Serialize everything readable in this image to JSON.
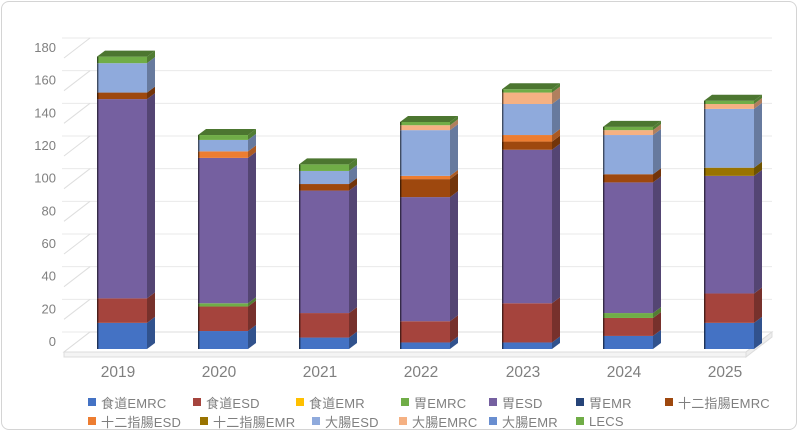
{
  "chart_data": {
    "type": "bar",
    "stacked": true,
    "effect_3d": true,
    "title": "",
    "xlabel": "",
    "ylabel": "",
    "categories": [
      "2019",
      "2020",
      "2021",
      "2022",
      "2023",
      "2024",
      "2025"
    ],
    "series": [
      {
        "name": "食道EMRC",
        "color": "#4472C4",
        "values": [
          16,
          11,
          7,
          4,
          4,
          8,
          16
        ]
      },
      {
        "name": "食道ESD",
        "color": "#A5443D",
        "values": [
          15,
          15,
          15,
          13,
          24,
          11,
          18
        ]
      },
      {
        "name": "食道EMR",
        "color": "#FFC000",
        "values": [
          0,
          0,
          0,
          0,
          0,
          0,
          0
        ]
      },
      {
        "name": "胃EMRC",
        "color": "#70AD47",
        "values": [
          0,
          2,
          0,
          0,
          0,
          3,
          0
        ]
      },
      {
        "name": "胃ESD",
        "color": "#7560A0",
        "values": [
          122,
          89,
          75,
          76,
          94,
          80,
          72
        ]
      },
      {
        "name": "胃EMR",
        "color": "#264478",
        "values": [
          0,
          0,
          0,
          0,
          0,
          0,
          0
        ]
      },
      {
        "name": "十二指腸EMRC",
        "color": "#9E480E",
        "values": [
          4,
          0,
          4,
          11,
          5,
          5,
          0
        ]
      },
      {
        "name": "十二指腸ESD",
        "color": "#ED7D31",
        "values": [
          0,
          4,
          0,
          2,
          4,
          0,
          0
        ]
      },
      {
        "name": "十二指腸EMR",
        "color": "#997300",
        "values": [
          0,
          0,
          0,
          0,
          0,
          0,
          5
        ]
      },
      {
        "name": "大腸ESD",
        "color": "#8FAADC",
        "values": [
          18,
          7,
          8,
          28,
          19,
          24,
          36
        ]
      },
      {
        "name": "大腸EMRC",
        "color": "#F5B183",
        "values": [
          0,
          0,
          0,
          3,
          7,
          3,
          3
        ]
      },
      {
        "name": "大腸EMR",
        "color": "#698ED0",
        "values": [
          0,
          0,
          0,
          0,
          0,
          0,
          0
        ]
      },
      {
        "name": "LECS",
        "color": "#70AD47",
        "values": [
          4,
          3,
          4,
          2,
          2,
          2,
          2
        ]
      }
    ],
    "ylim": [
      0,
      180
    ],
    "yticks": [
      0,
      20,
      40,
      60,
      80,
      100,
      120,
      140,
      160,
      180
    ],
    "grid": true,
    "legend_position": "bottom",
    "axis_text_color": "#808080"
  }
}
